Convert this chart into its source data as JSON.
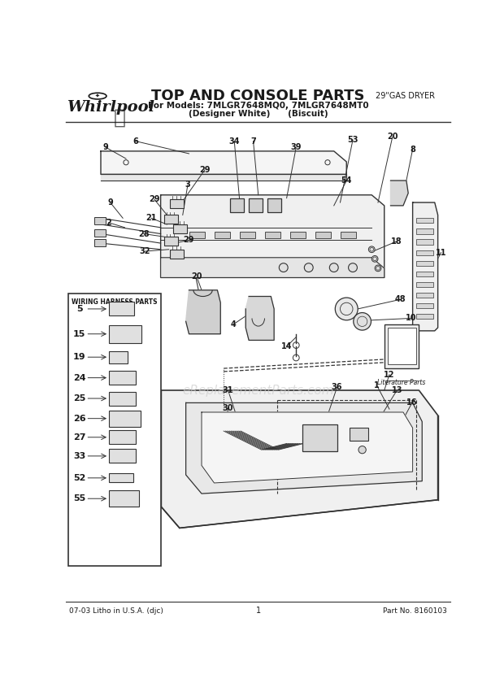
{
  "title": "TOP AND CONSOLE PARTS",
  "subtitle_line1": "For Models: 7MLGR7648MQ0, 7MLGR7648MT0",
  "subtitle_line2": "(Designer White)      (Biscuit)",
  "top_right_text": "29\"GAS DRYER",
  "brand": "Whirlpool",
  "footer_left": "07-03 Litho in U.S.A. (djc)",
  "footer_center": "1",
  "footer_right": "Part No. 8160103",
  "watermark": "eReplacementParts.com",
  "wiring_harness_title": "WIRING HARNESS PARTS",
  "wiring_harness_parts": [
    "5",
    "15",
    "19",
    "24",
    "25",
    "26",
    "27",
    "33",
    "52",
    "55"
  ],
  "bg_color": "#ffffff",
  "text_color": "#1a1a1a",
  "line_color": "#333333",
  "figsize": [
    6.2,
    8.56
  ],
  "dpi": 100
}
